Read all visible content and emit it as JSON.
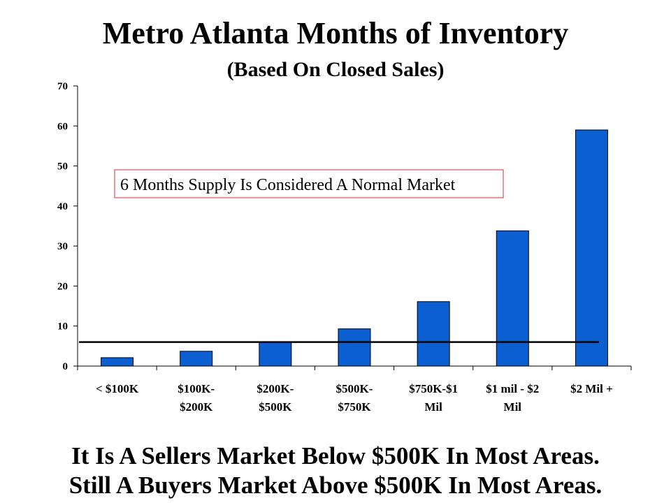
{
  "title": "Metro Atlanta Months of Inventory",
  "subtitle": "(Based On Closed Sales)",
  "annotation": "6 Months Supply Is Considered A Normal Market",
  "footer": [
    "It Is A Sellers Market Below $500K In Most Areas.",
    "Still A Buyers Market Above $500K In Most Areas."
  ],
  "colors": {
    "bar": "#0b5fd1",
    "reference_line": "#000000",
    "annotation_border": "#d03030"
  },
  "chart_data": {
    "type": "bar",
    "categories": [
      [
        "< $100K"
      ],
      [
        "$100K-",
        "$200K"
      ],
      [
        "$200K-",
        "$500K"
      ],
      [
        "$500K-",
        "$750K"
      ],
      [
        "$750K-$1",
        "Mil"
      ],
      [
        "$1 mil - $2",
        "Mil"
      ],
      [
        "$2 Mil +"
      ]
    ],
    "values": [
      2.1,
      3.7,
      6.1,
      9.3,
      16.1,
      33.8,
      59.0
    ],
    "ylim": [
      0,
      70
    ],
    "yticks": [
      0,
      10,
      20,
      30,
      40,
      50,
      60,
      70
    ],
    "reference_line": 6,
    "grid": false,
    "legend": "none"
  }
}
